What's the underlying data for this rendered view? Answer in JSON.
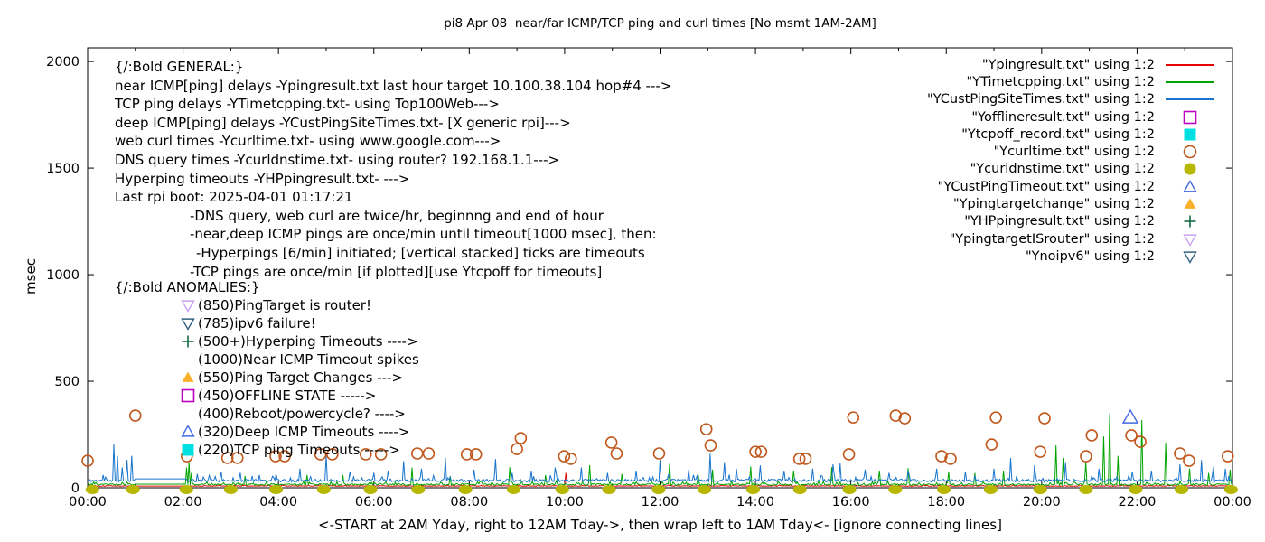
{
  "chart_data": {
    "type": "line+scatter",
    "title": "pi8 Apr 08  near/far ICMP/TCP ping and curl times [No msmt 1AM-2AM]",
    "xlabel": "<-START at 2AM Yday, right to 12AM Tday->, then wrap left to 1AM Tday<- [ignore connecting lines]",
    "ylabel": "msec",
    "xlim": [
      0,
      24
    ],
    "ylim": [
      0,
      2064
    ],
    "grid": false,
    "x_tick_hours": [
      0,
      2,
      4,
      6,
      8,
      10,
      12,
      14,
      16,
      18,
      20,
      22,
      24
    ],
    "x_tick_labels": [
      "00:00",
      "02:00",
      "04:00",
      "06:00",
      "08:00",
      "10:00",
      "12:00",
      "14:00",
      "16:00",
      "18:00",
      "20:00",
      "22:00",
      "00:00"
    ],
    "x_minor_every_hours": 1,
    "y_ticks": [
      0,
      500,
      1000,
      1500,
      2000
    ],
    "no_measurement_gap_hours": [
      1.0,
      2.05
    ],
    "series": [
      {
        "name": "Ypingresult.txt",
        "kind": "noisy-line",
        "color": "#e60000",
        "seed": 5,
        "base": 8,
        "noise": 2.5,
        "flat_segments": [
          {
            "from": 1.0,
            "to": 2.05,
            "value": 8
          }
        ],
        "spikes": [
          [
            10.02,
            70
          ]
        ]
      },
      {
        "name": "YTimetcpping.txt",
        "kind": "noisy-line",
        "color": "#00a400",
        "seed": 23,
        "base": 14,
        "noise": 8,
        "flat_segments": [
          {
            "from": 1.0,
            "to": 2.05,
            "value": 17
          }
        ],
        "spikes": [
          [
            2.08,
            95
          ],
          [
            2.13,
            120
          ],
          [
            2.18,
            70
          ],
          [
            3.3,
            55
          ],
          [
            4.6,
            60
          ],
          [
            5.35,
            60
          ],
          [
            6.8,
            95
          ],
          [
            7.6,
            55
          ],
          [
            8.86,
            97
          ],
          [
            9.6,
            60
          ],
          [
            10.52,
            106
          ],
          [
            11.2,
            65
          ],
          [
            12.19,
            114
          ],
          [
            12.8,
            60
          ],
          [
            13.1,
            85
          ],
          [
            13.9,
            100
          ],
          [
            14.8,
            80
          ],
          [
            15.6,
            97
          ],
          [
            16.6,
            80
          ],
          [
            17.2,
            93
          ],
          [
            18.05,
            75
          ],
          [
            18.6,
            70
          ],
          [
            19.2,
            80
          ],
          [
            20.31,
            199
          ],
          [
            20.46,
            140
          ],
          [
            20.92,
            120
          ],
          [
            21.3,
            241
          ],
          [
            21.42,
            347
          ],
          [
            21.6,
            150
          ],
          [
            22.1,
            318
          ],
          [
            22.6,
            212
          ],
          [
            23.1,
            90
          ],
          [
            23.5,
            70
          ],
          [
            23.96,
            85
          ]
        ]
      },
      {
        "name": "YCustPingSiteTimes.txt",
        "kind": "noisy-line",
        "color": "#1874cd",
        "seed": 11,
        "base": 32,
        "noise": 13,
        "flat_segments": [
          {
            "from": 1.0,
            "to": 2.05,
            "value": 42
          }
        ],
        "spikes": [
          [
            0.33,
            60
          ],
          [
            0.55,
            205
          ],
          [
            0.63,
            150
          ],
          [
            0.72,
            95
          ],
          [
            0.82,
            130
          ],
          [
            0.92,
            150
          ],
          [
            2.3,
            65
          ],
          [
            2.55,
            58
          ],
          [
            2.8,
            75
          ],
          [
            3.2,
            70
          ],
          [
            3.6,
            60
          ],
          [
            3.95,
            65
          ],
          [
            4.45,
            90
          ],
          [
            5.0,
            150
          ],
          [
            5.5,
            75
          ],
          [
            6.0,
            70
          ],
          [
            6.3,
            80
          ],
          [
            6.62,
            125
          ],
          [
            7.0,
            90
          ],
          [
            7.5,
            140
          ],
          [
            8.1,
            85
          ],
          [
            8.55,
            135
          ],
          [
            8.9,
            70
          ],
          [
            9.3,
            80
          ],
          [
            9.8,
            95
          ],
          [
            10.35,
            95
          ],
          [
            10.9,
            70
          ],
          [
            11.5,
            80
          ],
          [
            12.0,
            130
          ],
          [
            12.6,
            85
          ],
          [
            13.05,
            160
          ],
          [
            13.35,
            120
          ],
          [
            13.6,
            90
          ],
          [
            14.1,
            105
          ],
          [
            14.6,
            80
          ],
          [
            15.2,
            90
          ],
          [
            15.62,
            110
          ],
          [
            15.78,
            115
          ],
          [
            16.3,
            85
          ],
          [
            16.8,
            70
          ],
          [
            17.2,
            80
          ],
          [
            17.8,
            90
          ],
          [
            18.4,
            75
          ],
          [
            19.0,
            90
          ],
          [
            19.35,
            140
          ],
          [
            19.84,
            106
          ],
          [
            20.5,
            120
          ],
          [
            21.2,
            90
          ],
          [
            21.9,
            75
          ],
          [
            22.3,
            80
          ],
          [
            22.9,
            110
          ],
          [
            23.35,
            130
          ],
          [
            23.6,
            100
          ],
          [
            23.85,
            90
          ]
        ]
      },
      {
        "name": "Ycurltime.txt",
        "kind": "points",
        "marker": "circle-open",
        "color": "#c0571c",
        "size": 6,
        "points": [
          [
            0.0,
            127
          ],
          [
            1.0,
            339
          ],
          [
            2.08,
            148
          ],
          [
            2.93,
            140
          ],
          [
            3.14,
            140
          ],
          [
            3.94,
            148
          ],
          [
            4.13,
            148
          ],
          [
            4.88,
            157
          ],
          [
            5.13,
            157
          ],
          [
            5.83,
            157
          ],
          [
            6.15,
            157
          ],
          [
            6.91,
            161
          ],
          [
            7.15,
            161
          ],
          [
            7.95,
            157
          ],
          [
            8.14,
            157
          ],
          [
            9.0,
            182
          ],
          [
            9.08,
            233
          ],
          [
            9.99,
            148
          ],
          [
            10.13,
            136
          ],
          [
            10.98,
            212
          ],
          [
            11.09,
            161
          ],
          [
            11.98,
            161
          ],
          [
            12.97,
            275
          ],
          [
            13.06,
            199
          ],
          [
            14.0,
            169
          ],
          [
            14.12,
            169
          ],
          [
            14.92,
            136
          ],
          [
            15.05,
            136
          ],
          [
            15.96,
            157
          ],
          [
            16.05,
            330
          ],
          [
            16.94,
            339
          ],
          [
            17.13,
            326
          ],
          [
            17.9,
            148
          ],
          [
            18.09,
            136
          ],
          [
            18.95,
            203
          ],
          [
            19.04,
            330
          ],
          [
            19.97,
            169
          ],
          [
            20.06,
            326
          ],
          [
            20.93,
            148
          ],
          [
            21.05,
            246
          ],
          [
            21.88,
            246
          ],
          [
            22.07,
            216
          ],
          [
            22.9,
            161
          ],
          [
            23.09,
            127
          ],
          [
            23.9,
            148
          ]
        ]
      },
      {
        "name": "Ycurldnstime.txt",
        "kind": "points",
        "marker": "ellipse-filled",
        "color": "#b7b700",
        "size": 6,
        "points": [
          [
            0.1,
            0
          ],
          [
            0.95,
            0
          ],
          [
            2.07,
            0
          ],
          [
            3.0,
            0
          ],
          [
            3.95,
            0
          ],
          [
            4.95,
            0
          ],
          [
            5.93,
            0
          ],
          [
            6.93,
            0
          ],
          [
            7.92,
            0
          ],
          [
            8.93,
            0
          ],
          [
            9.95,
            0
          ],
          [
            10.93,
            0
          ],
          [
            11.97,
            0
          ],
          [
            12.93,
            0
          ],
          [
            13.95,
            0
          ],
          [
            14.93,
            0
          ],
          [
            15.97,
            0
          ],
          [
            16.93,
            0
          ],
          [
            17.95,
            0
          ],
          [
            18.93,
            0
          ],
          [
            19.97,
            0
          ],
          [
            20.93,
            0
          ],
          [
            21.97,
            0
          ],
          [
            22.93,
            0
          ],
          [
            23.97,
            0
          ]
        ]
      },
      {
        "name": "YCustPingTimeout.txt",
        "kind": "points",
        "marker": "triangle-up-open",
        "color": "#4169e1",
        "size": 8,
        "points": [
          [
            21.86,
            330
          ]
        ]
      }
    ]
  },
  "legend": [
    {
      "label": "\"Ypingresult.txt\" using 1:2",
      "swatch": "line",
      "color": "#e60000"
    },
    {
      "label": "\"YTimetcpping.txt\" using 1:2",
      "swatch": "line",
      "color": "#00a400"
    },
    {
      "label": "\"YCustPingSiteTimes.txt\" using 1:2",
      "swatch": "line",
      "color": "#1874cd"
    },
    {
      "label": "\"Yofflineresult.txt\" using 1:2",
      "swatch": "square-open",
      "color": "#c000c0"
    },
    {
      "label": "\"Ytcpoff_record.txt\" using 1:2",
      "swatch": "square-filled",
      "color": "#00e0e0"
    },
    {
      "label": "\"Ycurltime.txt\" using 1:2",
      "swatch": "circle-open",
      "color": "#c0571c"
    },
    {
      "label": "\"Ycurldnstime.txt\" using 1:2",
      "swatch": "circle-filled",
      "color": "#b7b700"
    },
    {
      "label": "\"YCustPingTimeout.txt\" using 1:2",
      "swatch": "triangle-up-open",
      "color": "#4169e1"
    },
    {
      "label": "\"Ypingtargetchange\" using 1:2",
      "swatch": "triangle-up-filled",
      "color": "#f9b02c"
    },
    {
      "label": "\"YHPpingresult.txt\" using 1:2",
      "swatch": "plus",
      "color": "#116b45"
    },
    {
      "label": "\"YpingtargetISrouter\" using 1:2",
      "swatch": "triangle-down-open",
      "color": "#c8a2f0"
    },
    {
      "label": "\"Ynoipv6\" using 1:2",
      "swatch": "triangle-down-open",
      "color": "#33607f"
    }
  ],
  "general": {
    "lines": [
      {
        "text": "{/:Bold GENERAL:}",
        "indent": 0
      },
      {
        "text": "near ICMP[ping] delays -Ypingresult.txt last hour target 10.100.38.104 hop#4 --->",
        "indent": 0
      },
      {
        "text": "TCP ping delays -YTimetcpping.txt- using Top100Web--->",
        "indent": 0
      },
      {
        "text": "deep ICMP[ping] delays -YCustPingSiteTimes.txt- [X generic rpi]--->",
        "indent": 0
      },
      {
        "text": "web curl times -Ycurltime.txt- using www.google.com--->",
        "indent": 0
      },
      {
        "text": "DNS query times -Ycurldnstime.txt- using router? 192.168.1.1--->",
        "indent": 0
      },
      {
        "text": "Hyperping timeouts -YHPpingresult.txt- --->",
        "indent": 0
      },
      {
        "text": "Last rpi boot: 2025-04-01 01:17:21",
        "indent": 0
      },
      {
        "text": "-DNS query, web curl are twice/hr, beginnng and end of hour",
        "indent": 83
      },
      {
        "text": "-near,deep ICMP pings are once/min until timeout[1000 msec], then:",
        "indent": 83
      },
      {
        "text": "-Hyperpings [6/min] initiated; [vertical stacked] ticks are timeouts",
        "indent": 90
      },
      {
        "text": "-TCP pings are once/min [if plotted][use Ytcpoff for timeouts]",
        "indent": 83
      }
    ]
  },
  "anomalies": {
    "title": "{/:Bold ANOMALIES:}",
    "rows": [
      {
        "marker": "triangle-down-open",
        "color": "#c8a2f0",
        "text": "(850)PingTarget is router!"
      },
      {
        "marker": "triangle-down-open",
        "color": "#33607f",
        "text": "(785)ipv6 failure!"
      },
      {
        "marker": "plus",
        "color": "#116b45",
        "text": "(500+)Hyperping Timeouts ---->"
      },
      {
        "marker": null,
        "color": null,
        "text": "(1000)Near ICMP Timeout spikes"
      },
      {
        "marker": "triangle-up-filled",
        "color": "#f9b02c",
        "text": "(550)Ping Target Changes --->"
      },
      {
        "marker": "square-open",
        "color": "#c000c0",
        "text": "(450)OFFLINE STATE ----->"
      },
      {
        "marker": null,
        "color": null,
        "text": "(400)Reboot/powercycle? ---->"
      },
      {
        "marker": "triangle-up-open",
        "color": "#4169e1",
        "text": "(320)Deep ICMP Timeouts ---->"
      },
      {
        "marker": "square-filled",
        "color": "#00e0e0",
        "text": "(220)TCP ping Timeouts ----->"
      }
    ]
  }
}
